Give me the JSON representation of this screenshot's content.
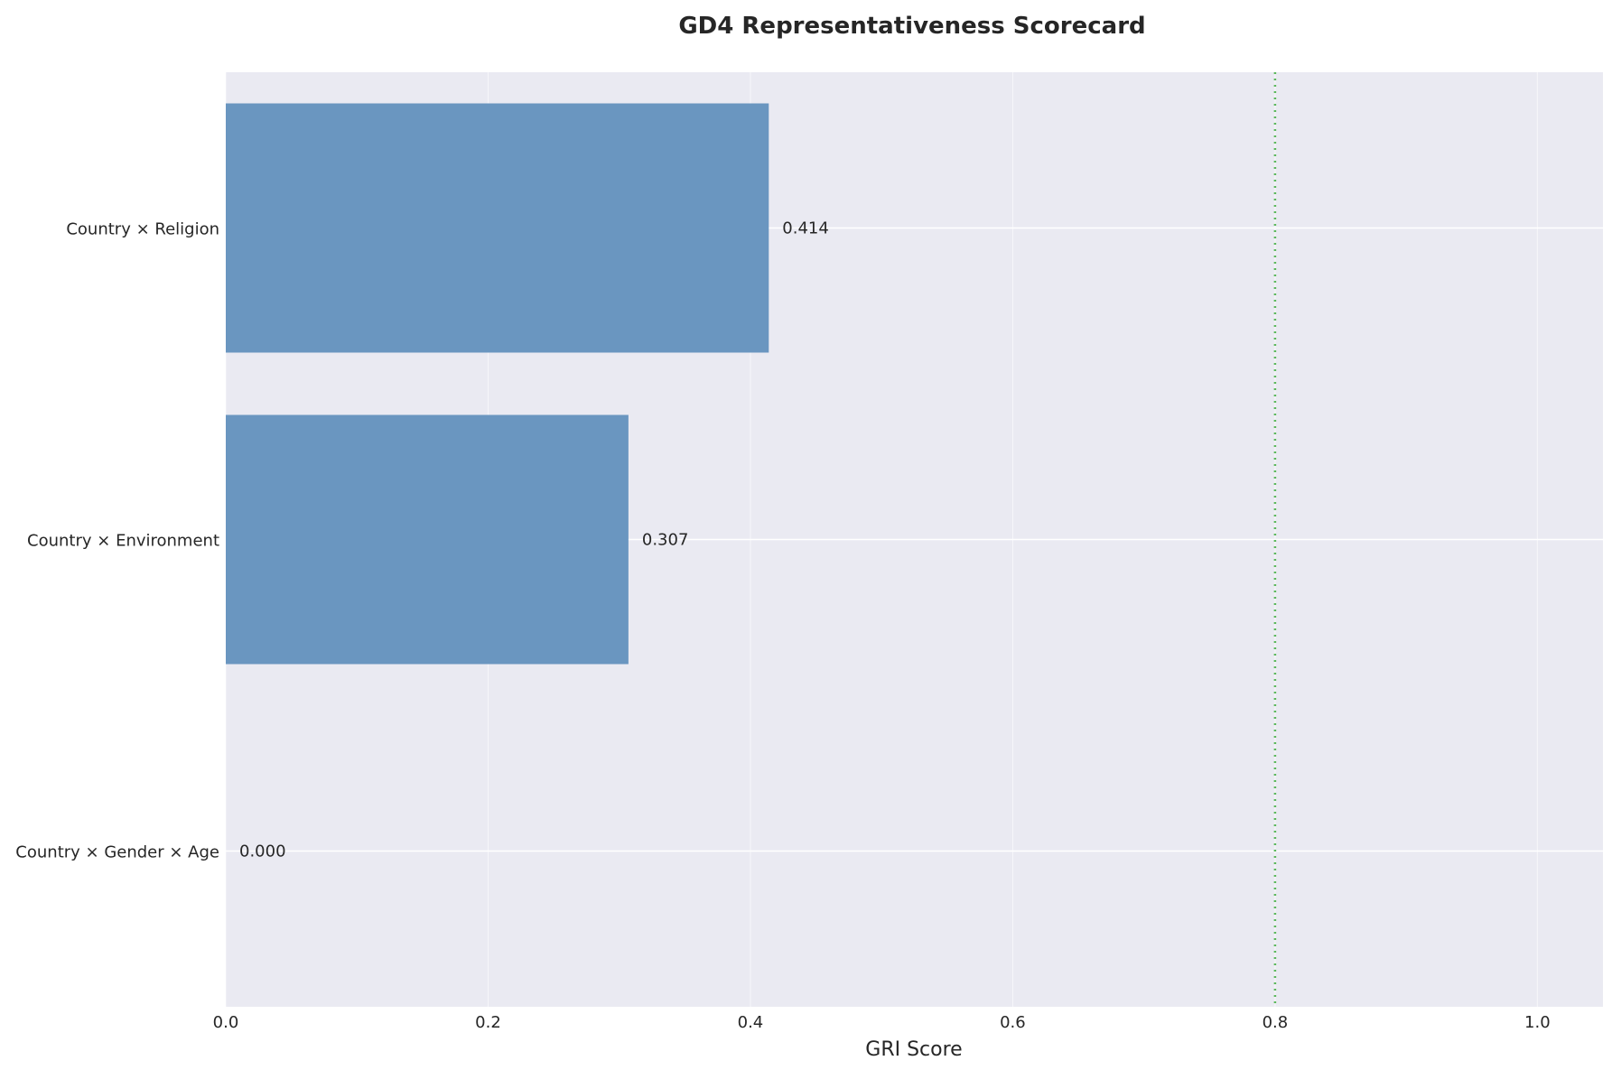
{
  "chart_data": {
    "type": "bar",
    "orientation": "horizontal",
    "title": "GD4 Representativeness Scorecard",
    "xlabel": "GRI Score",
    "ylabel": "",
    "xlim": [
      0,
      1.05
    ],
    "xticks": [
      0.0,
      0.2,
      0.4,
      0.6,
      0.8,
      1.0
    ],
    "xtick_labels": [
      "0.0",
      "0.2",
      "0.4",
      "0.6",
      "0.8",
      "1.0"
    ],
    "categories": [
      "Country × Religion",
      "Country × Environment",
      "Country × Gender × Age"
    ],
    "values": [
      0.414,
      0.307,
      0.0
    ],
    "value_labels": [
      "0.414",
      "0.307",
      "0.000"
    ],
    "reference_line": {
      "x": 0.8,
      "style": "dotted",
      "color": "#5cb85c"
    },
    "grid": true,
    "colors": {
      "bar": "#6a96c0",
      "plot_bg": "#eaeaf2",
      "grid": "#ffffff"
    }
  }
}
